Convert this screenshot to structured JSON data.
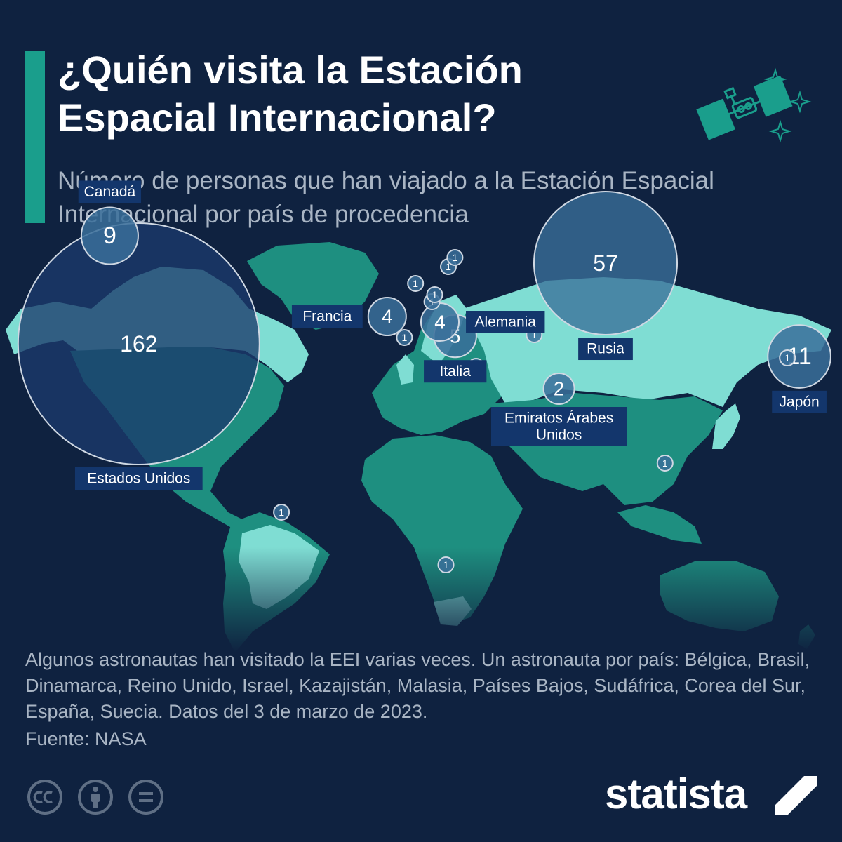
{
  "title": "¿Quién visita la Estación Espacial Internacional?",
  "subtitle": "Número de personas que han viajado a la Estación Espacial Internacional por país de procedencia",
  "colors": {
    "background": "#0f2240",
    "accent": "#1a9e8c",
    "land": "#1e8f80",
    "land_highlight": "#7fddd3",
    "bubble_large": "#1b3a6b",
    "bubble_light": "#3a6f9a",
    "label_bg": "#13366c",
    "text_muted": "#a9b5c4"
  },
  "chart_data": {
    "type": "bubble-map",
    "title": "¿Quién visita la Estación Espacial Internacional?",
    "subtitle": "Número de personas que han viajado a la Estación Espacial Internacional por país de procedencia",
    "series": [
      {
        "country": "Estados Unidos",
        "value": 162,
        "label": "162",
        "name": "Estados Unidos",
        "lon": -98,
        "lat": 38
      },
      {
        "country": "Rusia",
        "value": 57,
        "label": "57",
        "name": "Rusia",
        "lon": 70,
        "lat": 59
      },
      {
        "country": "Japón",
        "value": 11,
        "label": "11",
        "name": "Japón",
        "lon": 139,
        "lat": 37
      },
      {
        "country": "Canadá",
        "value": 9,
        "label": "9",
        "name": "Canadá",
        "lon": -104,
        "lat": 60
      },
      {
        "country": "Italia",
        "value": 5,
        "label": "5",
        "name": "Italia",
        "lon": 13,
        "lat": 42
      },
      {
        "country": "Alemania",
        "value": 4,
        "label": "4",
        "name": "Alemania",
        "lon": 10,
        "lat": 51
      },
      {
        "country": "Francia",
        "value": 4,
        "label": "4",
        "name": "Francia",
        "lon": 2,
        "lat": 46
      },
      {
        "country": "Emiratos Árabes Unidos",
        "value": 2,
        "label": "2",
        "name": "Emiratos Árabes\nUnidos",
        "lon": 54,
        "lat": 24
      },
      {
        "country": "Bélgica",
        "value": 1,
        "label": "1",
        "lon": 4,
        "lat": 50
      },
      {
        "country": "Brasil",
        "value": 1,
        "label": "1",
        "lon": -51,
        "lat": -10
      },
      {
        "country": "Dinamarca",
        "value": 1,
        "label": "1",
        "lon": 10,
        "lat": 56
      },
      {
        "country": "Reino Unido",
        "value": 1,
        "label": "1",
        "lon": -2,
        "lat": 54
      },
      {
        "country": "Israel",
        "value": 1,
        "label": "1",
        "lon": 35,
        "lat": 31
      },
      {
        "country": "Kazajistán",
        "value": 1,
        "label": "1",
        "lon": 67,
        "lat": 48
      },
      {
        "country": "Malasia",
        "value": 1,
        "label": "1",
        "lon": 102,
        "lat": 4
      },
      {
        "country": "Países Bajos",
        "value": 1,
        "label": "1",
        "lon": 5,
        "lat": 52
      },
      {
        "country": "Sudáfrica",
        "value": 1,
        "label": "1",
        "lon": 25,
        "lat": -29
      },
      {
        "country": "Corea del Sur",
        "value": 1,
        "label": "1",
        "lon": 128,
        "lat": 36
      },
      {
        "country": "España",
        "value": 1,
        "label": "1",
        "lon": -4,
        "lat": 40
      },
      {
        "country": "Suecia",
        "value": 1,
        "label": "1",
        "lon": 16,
        "lat": 62
      }
    ]
  },
  "footnote": "Algunos astronautas han visitado la EEI varias veces. Un astronauta por país: Bélgica, Brasil, Dinamarca, Reino Unido, Israel, Kazajistán, Malasia, Países Bajos, Sudáfrica, Corea del Sur, España, Suecia. Datos del 3 de marzo de 2023.",
  "source": "Fuente: NASA",
  "brand": "statista",
  "license_icons": [
    "cc-icon",
    "attribution-icon",
    "no-derivatives-icon"
  ]
}
